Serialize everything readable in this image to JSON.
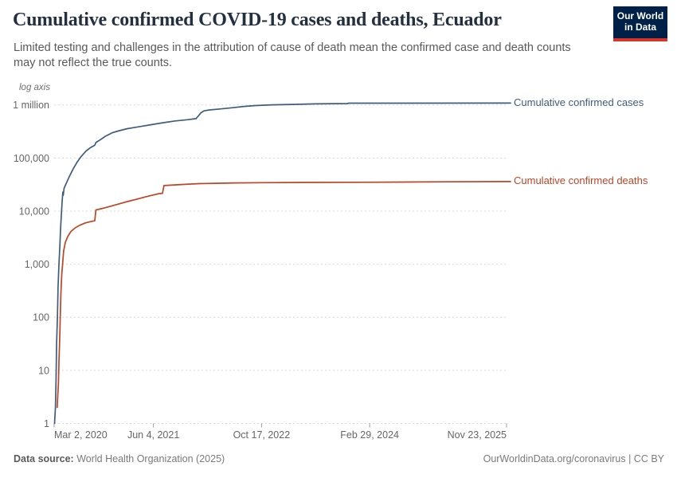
{
  "header": {
    "title": "Cumulative confirmed COVID-19 cases and deaths, Ecuador",
    "subtitle": "Limited testing and challenges in the attribution of cause of death mean the confirmed case and death counts may not reflect the true counts.",
    "logo": {
      "line1": "Our World",
      "line2": "in Data",
      "bg": "#002147",
      "accent": "#d8352a"
    }
  },
  "chart_data": {
    "type": "line",
    "scale": "log",
    "scale_label": "log axis",
    "grid": true,
    "legend_position": "right-of-line-end-labels",
    "x_axis": {
      "domain_days": [
        0,
        2092
      ],
      "ticks": [
        {
          "label": "Mar 2, 2020",
          "day": 0
        },
        {
          "label": "Jun 4, 2021",
          "day": 459
        },
        {
          "label": "Oct 17, 2022",
          "day": 959
        },
        {
          "label": "Feb 29, 2024",
          "day": 1459
        },
        {
          "label": "Nov 23, 2025",
          "day": 2092
        }
      ]
    },
    "y_axis": {
      "range": [
        1,
        1700000
      ],
      "ticks": [
        {
          "label": "1",
          "value": 1
        },
        {
          "label": "10",
          "value": 10
        },
        {
          "label": "100",
          "value": 100
        },
        {
          "label": "1,000",
          "value": 1000
        },
        {
          "label": "10,000",
          "value": 10000
        },
        {
          "label": "100,000",
          "value": 100000
        },
        {
          "label": "1 million",
          "value": 1000000
        }
      ]
    },
    "series": [
      {
        "name": "Cumulative confirmed cases",
        "color": "#3e5c7e",
        "points": [
          [
            2,
            1
          ],
          [
            6,
            2
          ],
          [
            9,
            7
          ],
          [
            11,
            30
          ],
          [
            15,
            100
          ],
          [
            18,
            370
          ],
          [
            22,
            1000
          ],
          [
            26,
            2100
          ],
          [
            29,
            4200
          ],
          [
            33,
            8400
          ],
          [
            37,
            15000
          ],
          [
            40,
            22800
          ],
          [
            42,
            19900
          ],
          [
            46,
            27100
          ],
          [
            55,
            32600
          ],
          [
            70,
            44600
          ],
          [
            88,
            62600
          ],
          [
            107,
            85000
          ],
          [
            125,
            107000
          ],
          [
            147,
            135000
          ],
          [
            169,
            158000
          ],
          [
            188,
            175000
          ],
          [
            193,
            196000
          ],
          [
            214,
            222000
          ],
          [
            239,
            260000
          ],
          [
            269,
            300000
          ],
          [
            302,
            328000
          ],
          [
            339,
            357000
          ],
          [
            376,
            379000
          ],
          [
            412,
            400000
          ],
          [
            449,
            425000
          ],
          [
            505,
            463000
          ],
          [
            560,
            499000
          ],
          [
            615,
            527000
          ],
          [
            656,
            553000
          ],
          [
            667,
            621000
          ],
          [
            678,
            705000
          ],
          [
            692,
            771000
          ],
          [
            718,
            804000
          ],
          [
            766,
            838000
          ],
          [
            821,
            883000
          ],
          [
            877,
            936000
          ],
          [
            932,
            975000
          ],
          [
            1005,
            1003000
          ],
          [
            1097,
            1023000
          ],
          [
            1208,
            1045000
          ],
          [
            1300,
            1059000
          ],
          [
            1355,
            1062000
          ],
          [
            1362,
            1080000
          ],
          [
            2092,
            1084000
          ]
        ]
      },
      {
        "name": "Cumulative confirmed deaths",
        "color": "#bd4425",
        "points": [
          [
            14,
            2
          ],
          [
            20,
            6
          ],
          [
            22,
            14
          ],
          [
            24,
            24
          ],
          [
            26,
            47
          ],
          [
            28,
            95
          ],
          [
            31,
            265
          ],
          [
            35,
            630
          ],
          [
            39,
            1000
          ],
          [
            44,
            1780
          ],
          [
            52,
            2600
          ],
          [
            63,
            3330
          ],
          [
            77,
            4100
          ],
          [
            96,
            4800
          ],
          [
            118,
            5400
          ],
          [
            144,
            6000
          ],
          [
            166,
            6300
          ],
          [
            188,
            6570
          ],
          [
            193,
            10500
          ],
          [
            217,
            11100
          ],
          [
            247,
            11900
          ],
          [
            280,
            13000
          ],
          [
            313,
            14150
          ],
          [
            346,
            15400
          ],
          [
            383,
            16850
          ],
          [
            420,
            18400
          ],
          [
            457,
            20100
          ],
          [
            486,
            21350
          ],
          [
            501,
            21600
          ],
          [
            508,
            30300
          ],
          [
            541,
            30800
          ],
          [
            597,
            31800
          ],
          [
            670,
            32900
          ],
          [
            744,
            33400
          ],
          [
            836,
            34000
          ],
          [
            965,
            34300
          ],
          [
            1149,
            34700
          ],
          [
            1407,
            34900
          ],
          [
            1800,
            35600
          ],
          [
            2092,
            36000
          ]
        ]
      }
    ]
  },
  "footer": {
    "source_label": "Data source:",
    "source": "World Health Organization (2025)",
    "right": "OurWorldinData.org/coronavirus | CC BY"
  }
}
